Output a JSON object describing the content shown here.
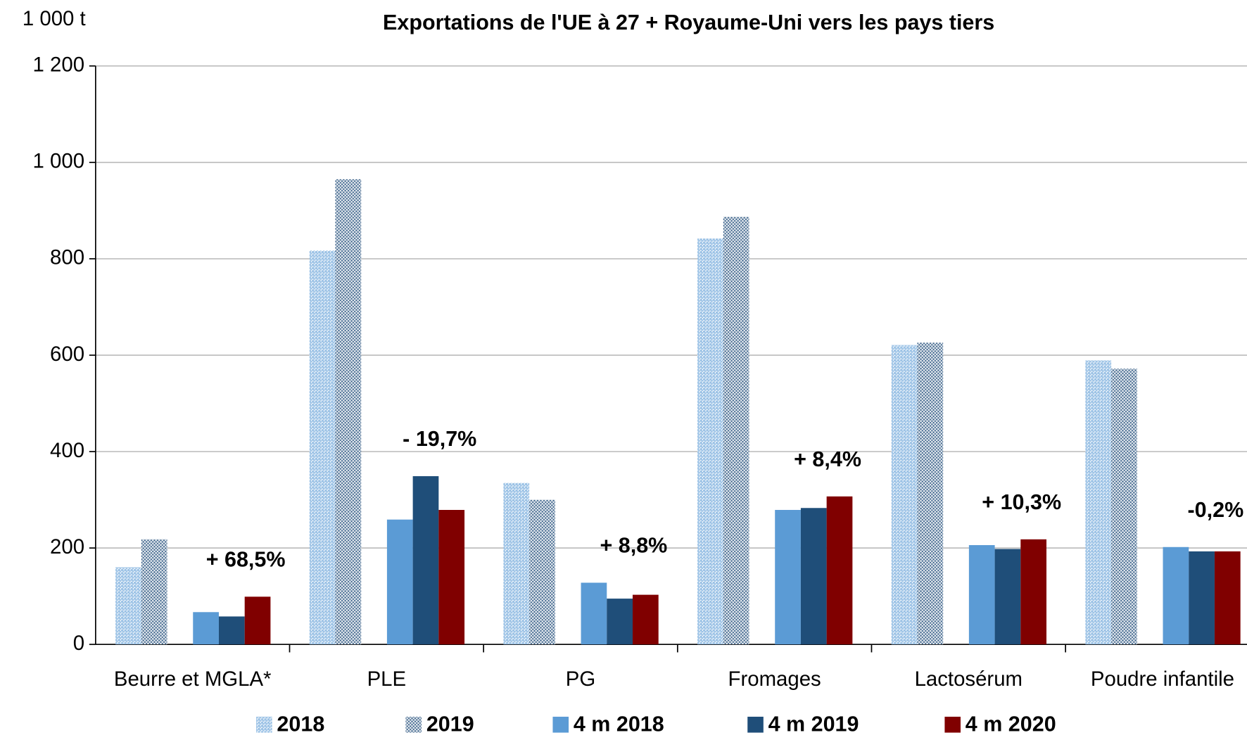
{
  "chart_data": {
    "type": "bar",
    "title": "Exportations de l'UE à 27 + Royaume-Uni vers les pays tiers",
    "y_axis_label": "1 000 t",
    "categories": [
      "Beurre et MGLA*",
      "PLE",
      "PG",
      "Fromages",
      "Lactosérum",
      "Poudre infantile"
    ],
    "series": [
      {
        "name": "2018",
        "color": "#9dc3e6",
        "pattern": "dots",
        "values": [
          160,
          817,
          335,
          842,
          621,
          589
        ]
      },
      {
        "name": "2019",
        "color": "#44698f",
        "pattern": "cross",
        "values": [
          218,
          965,
          300,
          887,
          626,
          572
        ]
      },
      {
        "name": "4 m 2018",
        "color": "#5b9bd5",
        "values": [
          67,
          259,
          128,
          279,
          206,
          202
        ]
      },
      {
        "name": "4 m 2019",
        "color": "#1f4e79",
        "values": [
          58,
          349,
          95,
          283,
          198,
          193
        ]
      },
      {
        "name": "4 m 2020",
        "color": "#800000",
        "values": [
          99,
          279,
          103,
          307,
          218,
          193
        ]
      }
    ],
    "annotations": [
      "+ 68,5%",
      "- 19,7%",
      "+ 8,8%",
      "+ 8,4%",
      "+ 10,3%",
      "-0,2%"
    ],
    "annotation_color": "#8b1a1a",
    "ylim": [
      0,
      1200
    ],
    "yticks": [
      0,
      200,
      400,
      600,
      800,
      {
        "value": 1000,
        "label": "1 000"
      },
      {
        "value": 1200,
        "label": "1 200"
      }
    ],
    "grid": true,
    "legend": "bottom"
  }
}
